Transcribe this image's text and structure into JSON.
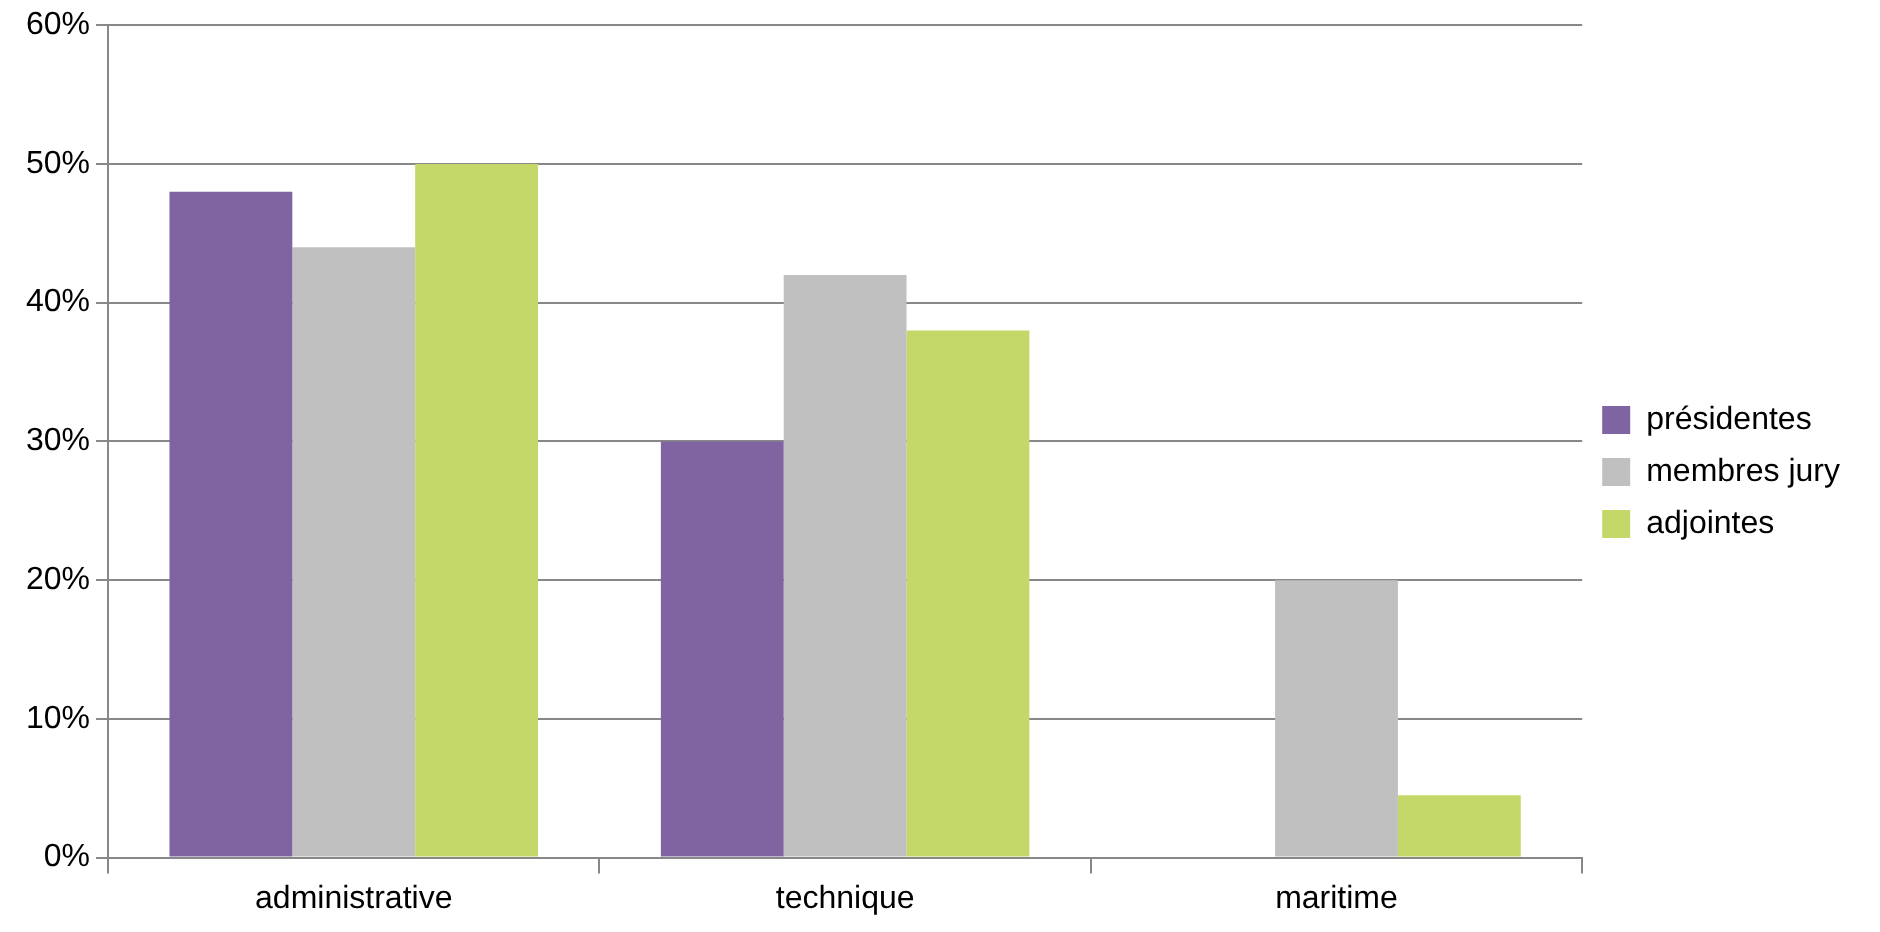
{
  "chart_data": {
    "type": "bar",
    "categories": [
      "administrative",
      "technique",
      "maritime"
    ],
    "series": [
      {
        "name": "présidentes",
        "color": "#8064a2",
        "values": [
          48,
          30,
          0
        ]
      },
      {
        "name": "membres jury",
        "color": "#bfc0bf",
        "values": [
          44,
          42,
          20
        ]
      },
      {
        "name": "adjointes",
        "color": "#c3d869",
        "values": [
          50,
          38,
          4.5
        ]
      }
    ],
    "ylim": [
      0,
      60
    ],
    "yticks": [
      {
        "value": 0,
        "label": "0%"
      },
      {
        "value": 10,
        "label": "10%"
      },
      {
        "value": 20,
        "label": "20%"
      },
      {
        "value": 30,
        "label": "30%"
      },
      {
        "value": 40,
        "label": "40%"
      },
      {
        "value": 50,
        "label": "50%"
      },
      {
        "value": 60,
        "label": "60%"
      }
    ],
    "grid": "y",
    "legend": "right"
  }
}
